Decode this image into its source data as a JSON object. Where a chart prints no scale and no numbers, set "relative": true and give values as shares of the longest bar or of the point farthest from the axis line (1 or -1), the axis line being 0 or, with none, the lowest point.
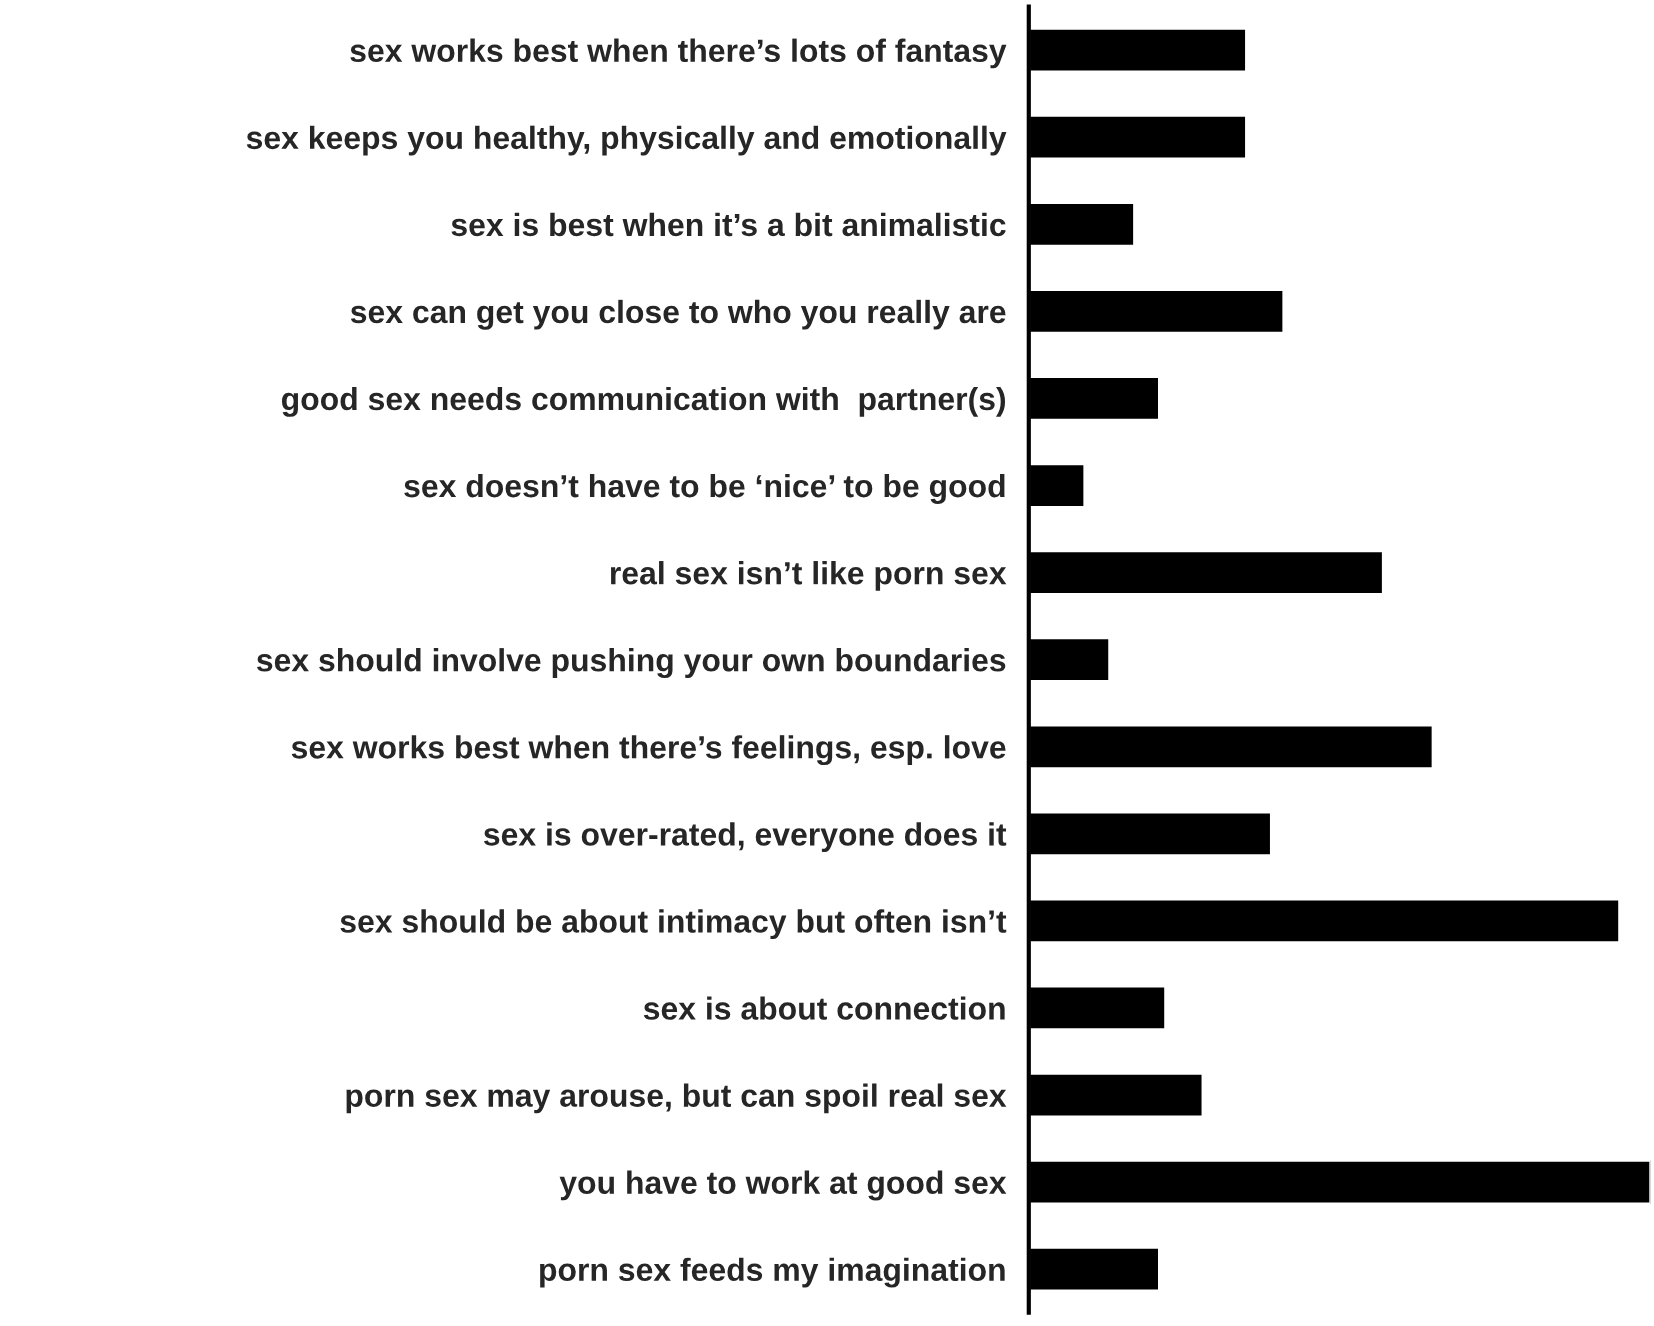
{
  "chart_data": {
    "type": "bar",
    "orientation": "horizontal",
    "relative": true,
    "grid": false,
    "legend": false,
    "color": "#000000",
    "categories": [
      "sex works best when there’s lots of fantasy",
      "sex keeps you healthy, physically and emotionally",
      "sex is best when it’s a bit animalistic",
      "sex can get you close to who you really are",
      "good sex needs communication with  partner(s)",
      "sex doesn’t have to be ‘nice’ to be good",
      "real sex isn’t like porn sex",
      "sex should involve pushing your own boundaries",
      "sex works best when there’s feelings, esp. love",
      "sex is over-rated, everyone does it",
      "sex should be about intimacy but often isn’t",
      "sex is about connection",
      "porn sex may arouse, but can spoil real sex",
      "you have to work at good sex",
      "porn sex feeds my imagination"
    ],
    "values": [
      0.35,
      0.35,
      0.17,
      0.41,
      0.21,
      0.09,
      0.57,
      0.13,
      0.65,
      0.39,
      0.95,
      0.22,
      0.28,
      1,
      0.21
    ]
  }
}
